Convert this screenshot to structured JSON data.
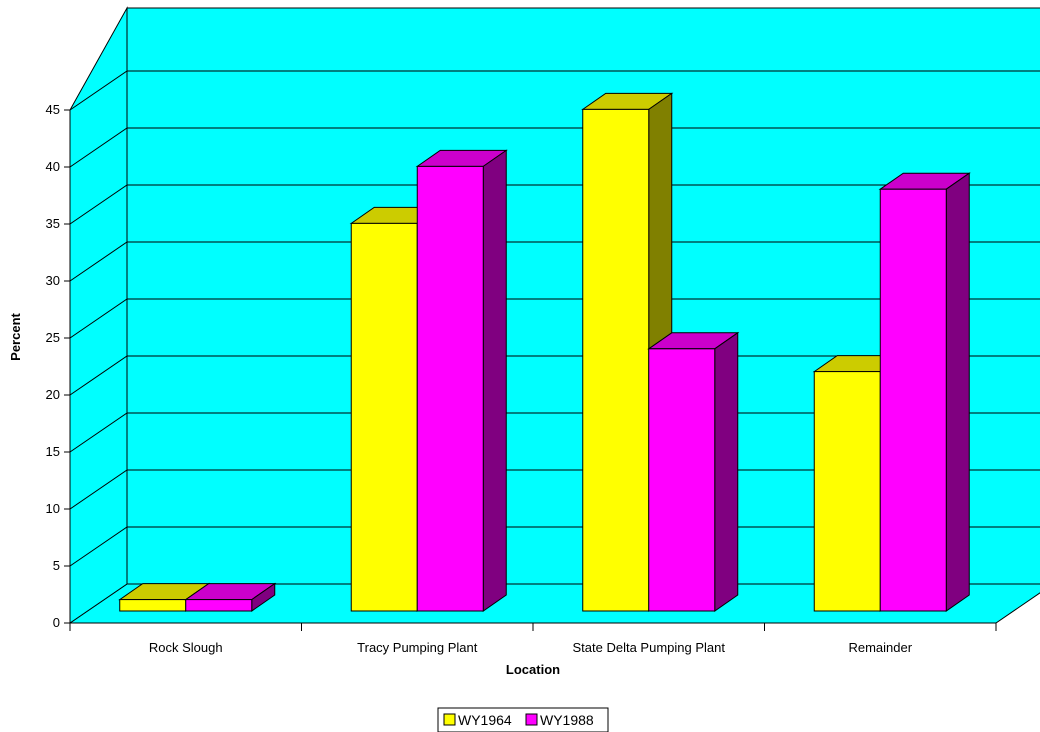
{
  "chart_data": {
    "type": "bar",
    "categories": [
      "Rock Slough",
      "Tracy Pumping Plant",
      "State Delta Pumping Plant",
      "Remainder"
    ],
    "series": [
      {
        "name": "WY1964",
        "values": [
          1,
          34,
          44,
          21
        ],
        "color": "#ffff00",
        "top_color": "#cccc00",
        "side_color": "#808000"
      },
      {
        "name": "WY1988",
        "values": [
          1,
          39,
          23,
          37
        ],
        "color": "#ff00ff",
        "top_color": "#cc00cc",
        "side_color": "#800080"
      }
    ],
    "xlabel": "Location",
    "ylabel": "Percent",
    "ylim": [
      0,
      45
    ],
    "yticks": [
      0,
      5,
      10,
      15,
      20,
      25,
      30,
      35,
      40,
      45
    ],
    "grid": true,
    "legend_position": "bottom-center",
    "wall_color": "#00ffff",
    "floor_color": "#00ffff"
  }
}
